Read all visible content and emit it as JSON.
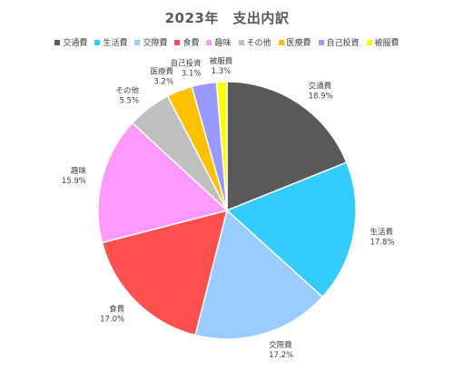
{
  "chart_data": {
    "type": "pie",
    "title": "2023年　支出内訳",
    "legend_position": "top",
    "categories": [
      "交通費",
      "生活費",
      "交際費",
      "食費",
      "趣味",
      "その他",
      "医療費",
      "自己投資",
      "被服費"
    ],
    "values": [
      18.9,
      17.8,
      17.2,
      17.0,
      15.9,
      5.5,
      3.2,
      3.1,
      1.3
    ],
    "value_labels": [
      "18.9%",
      "17.8%",
      "17.2%",
      "17.0%",
      "15.9%",
      "5.5%",
      "3.2%",
      "3.1%",
      "1.3%"
    ],
    "colors": [
      "#595959",
      "#33ccff",
      "#99ccff",
      "#ff5050",
      "#ff99ff",
      "#bfbfbf",
      "#ffc000",
      "#9999ff",
      "#ffff00"
    ]
  }
}
